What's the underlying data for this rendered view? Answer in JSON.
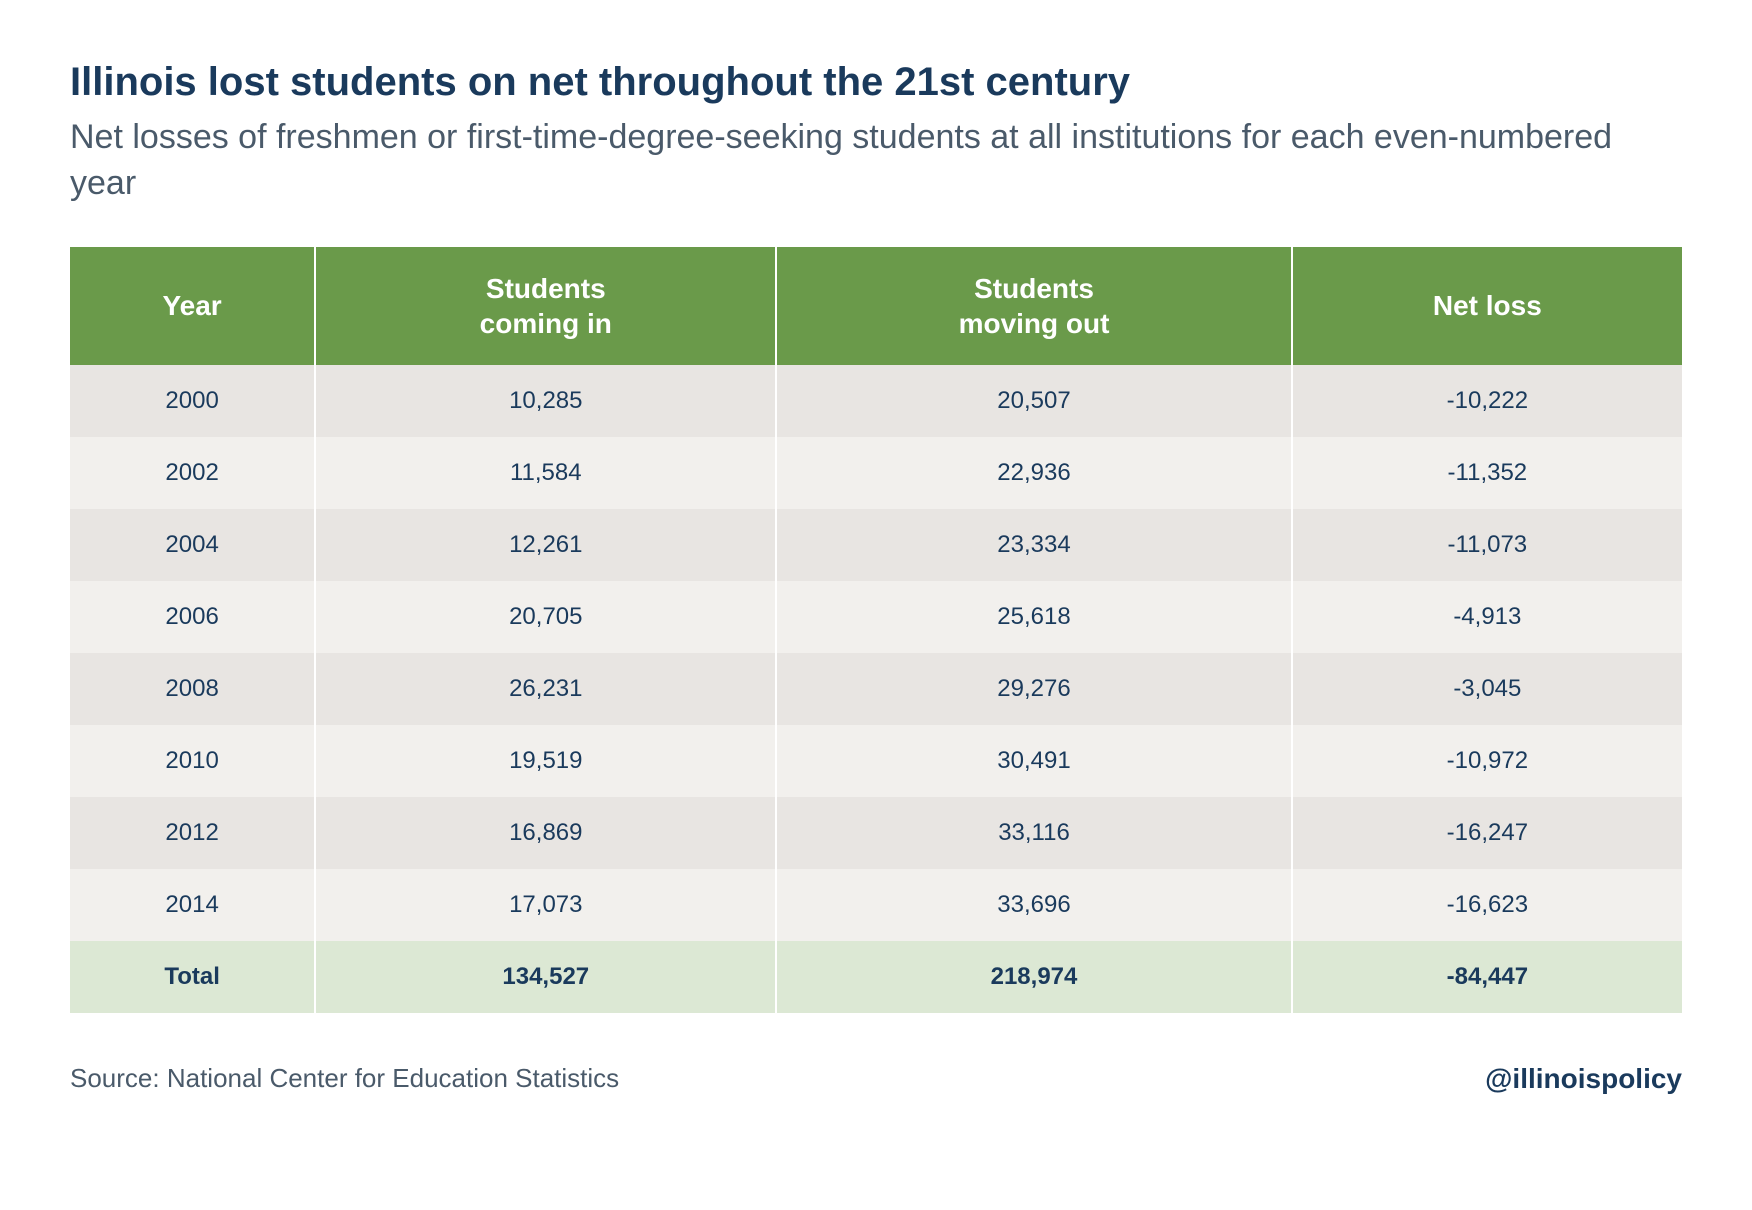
{
  "title": "Illinois lost students on net throughout the 21st century",
  "subtitle": "Net losses of freshmen or first-time-degree-seeking students at all institutions for each even-numbered year",
  "table": {
    "type": "table",
    "columns": [
      "Year",
      "Students\ncoming in",
      "Students\nmoving out",
      "Net loss"
    ],
    "rows": [
      [
        "2000",
        "10,285",
        "20,507",
        "-10,222"
      ],
      [
        "2002",
        "11,584",
        "22,936",
        "-11,352"
      ],
      [
        "2004",
        "12,261",
        "23,334",
        "-11,073"
      ],
      [
        "2006",
        "20,705",
        "25,618",
        "-4,913"
      ],
      [
        "2008",
        "26,231",
        "29,276",
        "-3,045"
      ],
      [
        "2010",
        "19,519",
        "30,491",
        "-10,972"
      ],
      [
        "2012",
        "16,869",
        "33,116",
        "-16,247"
      ],
      [
        "2014",
        "17,073",
        "33,696",
        "-16,623"
      ]
    ],
    "total": [
      "Total",
      "134,527",
      "218,974",
      "-84,447"
    ],
    "header_bg": "#6a9a4a",
    "header_text_color": "#ffffff",
    "row_odd_bg": "#e8e5e2",
    "row_even_bg": "#f2f0ed",
    "total_bg": "#dce8d4",
    "cell_text_color": "#1a3a5c",
    "header_fontsize": 28,
    "cell_fontsize": 24,
    "col_widths": [
      "25%",
      "25%",
      "25%",
      "25%"
    ]
  },
  "source": "Source: National Center for Education Statistics",
  "handle": "@illinoispolicy",
  "colors": {
    "title": "#1a3a5c",
    "subtitle": "#4a5a6a",
    "background": "#ffffff"
  },
  "typography": {
    "title_fontsize": 40,
    "subtitle_fontsize": 34,
    "source_fontsize": 26,
    "handle_fontsize": 28
  }
}
